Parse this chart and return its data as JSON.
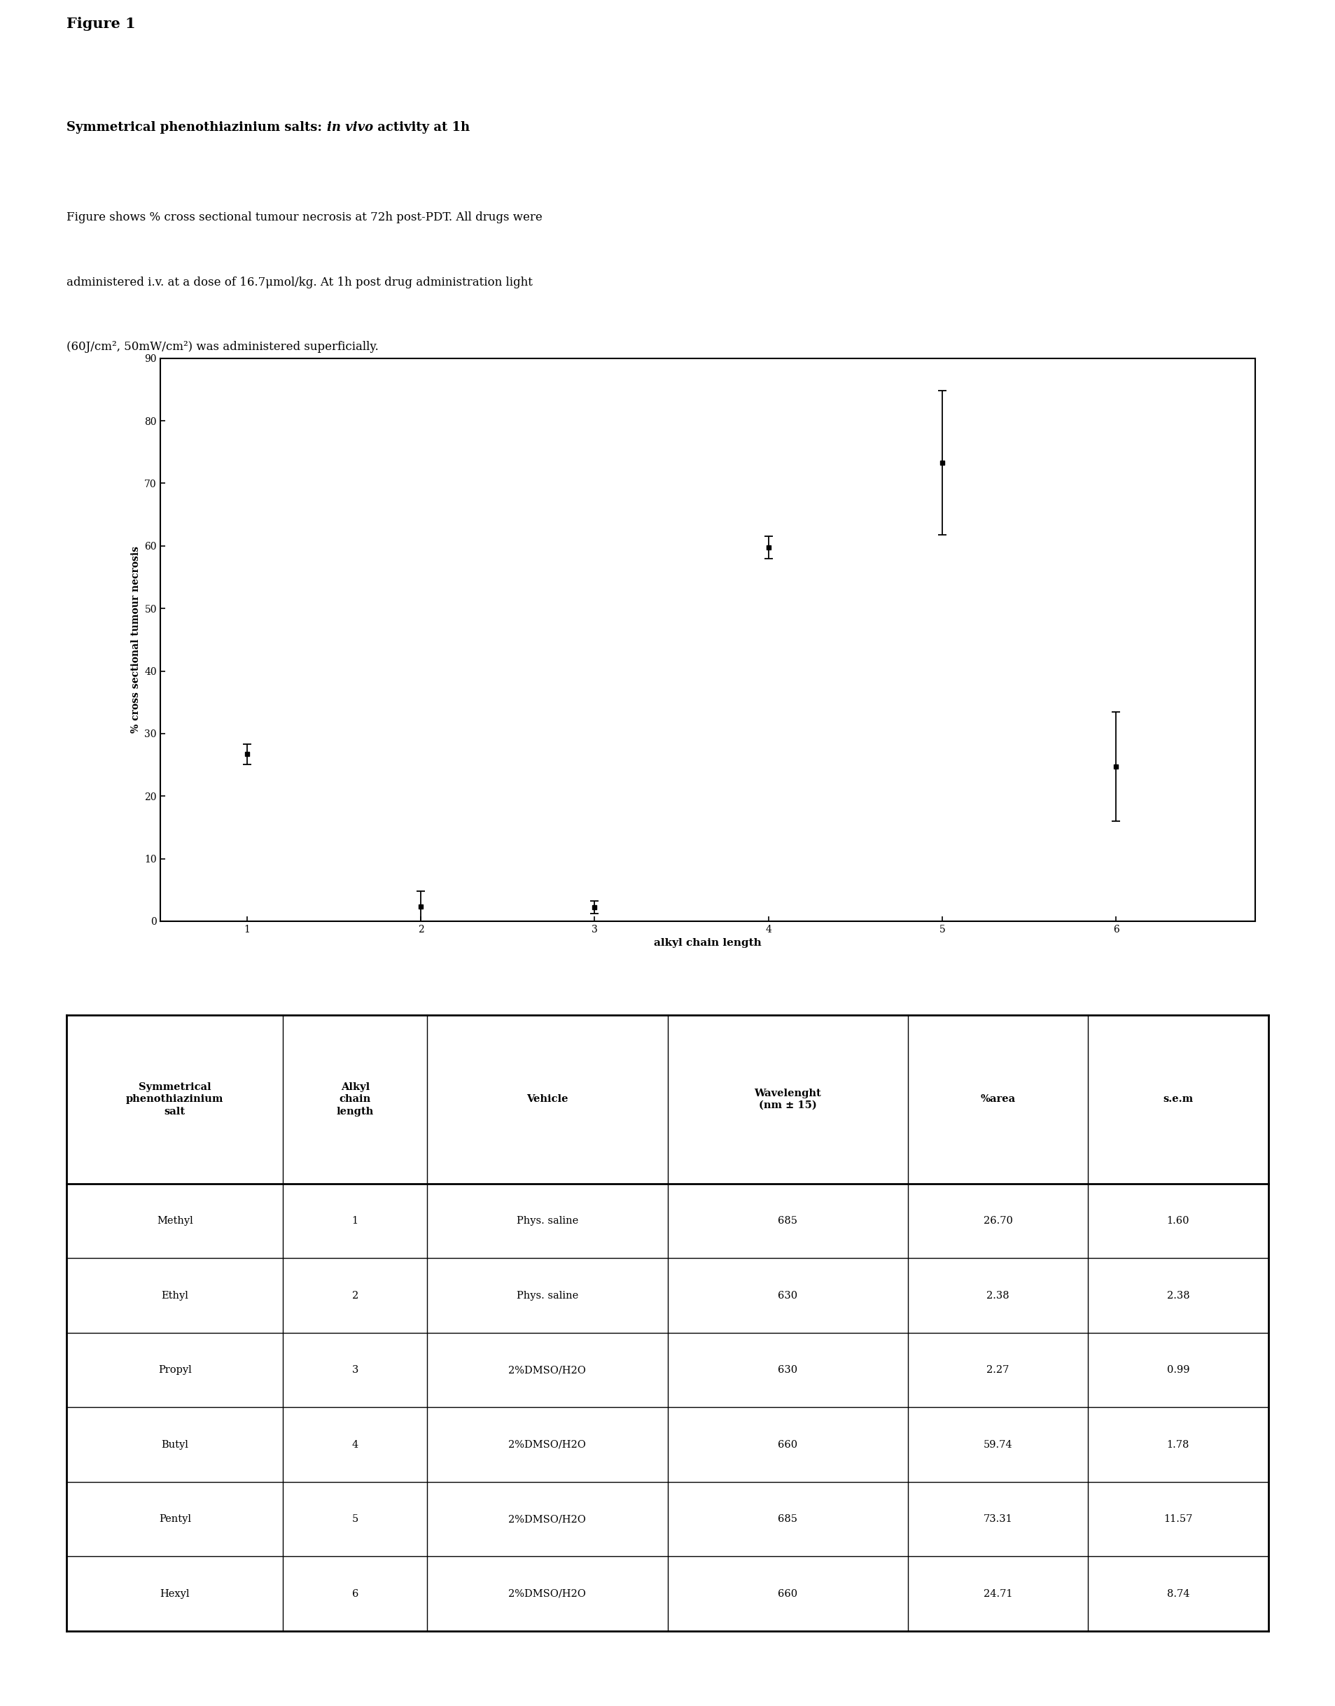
{
  "figure_label": "Figure 1",
  "subtitle_normal1": "Symmetrical phenothiazinium salts: ",
  "subtitle_italic": "in vivo",
  "subtitle_normal2": " activity at 1h",
  "caption_lines": [
    "Figure shows % cross sectional tumour necrosis at 72h post-PDT. All drugs were",
    "administered i.v. at a dose of 16.7μmol/kg. At 1h post drug administration light",
    "(60J/cm², 50mW/cm²) was administered superficially."
  ],
  "x_values": [
    1,
    2,
    3,
    4,
    5,
    6
  ],
  "y_values": [
    26.7,
    2.38,
    2.27,
    59.74,
    73.31,
    24.71
  ],
  "y_errors": [
    1.6,
    2.38,
    0.99,
    1.78,
    11.57,
    8.74
  ],
  "xlabel": "alkyl chain length",
  "ylabel": "% cross sectional tumour necrosis",
  "ylim": [
    0,
    90
  ],
  "yticks": [
    0,
    10,
    20,
    30,
    40,
    50,
    60,
    70,
    80,
    90
  ],
  "xticks": [
    1,
    2,
    3,
    4,
    5,
    6
  ],
  "line_color": "#000000",
  "background_color": "#ffffff",
  "font_family": "DejaVu Serif",
  "table_headers": [
    "Symmetrical\nphenothiazinium\nsalt",
    "Alkyl\nchain\nlength",
    "Vehicle",
    "Wavelenght\n(nm ± 15)",
    "%area",
    "s.e.m"
  ],
  "table_col_widths": [
    0.18,
    0.12,
    0.2,
    0.2,
    0.15,
    0.15
  ],
  "table_rows": [
    [
      "Methyl",
      "1",
      "Phys. saline",
      "685",
      "26.70",
      "1.60"
    ],
    [
      "Ethyl",
      "2",
      "Phys. saline",
      "630",
      "2.38",
      "2.38"
    ],
    [
      "Propyl",
      "3",
      "2%DMSO/H2O",
      "630",
      "2.27",
      "0.99"
    ],
    [
      "Butyl",
      "4",
      "2%DMSO/H2O",
      "660",
      "59.74",
      "1.78"
    ],
    [
      "Pentyl",
      "5",
      "2%DMSO/H2O",
      "685",
      "73.31",
      "11.57"
    ],
    [
      "Hexyl",
      "6",
      "2%DMSO/H2O",
      "660",
      "24.71",
      "8.74"
    ]
  ]
}
